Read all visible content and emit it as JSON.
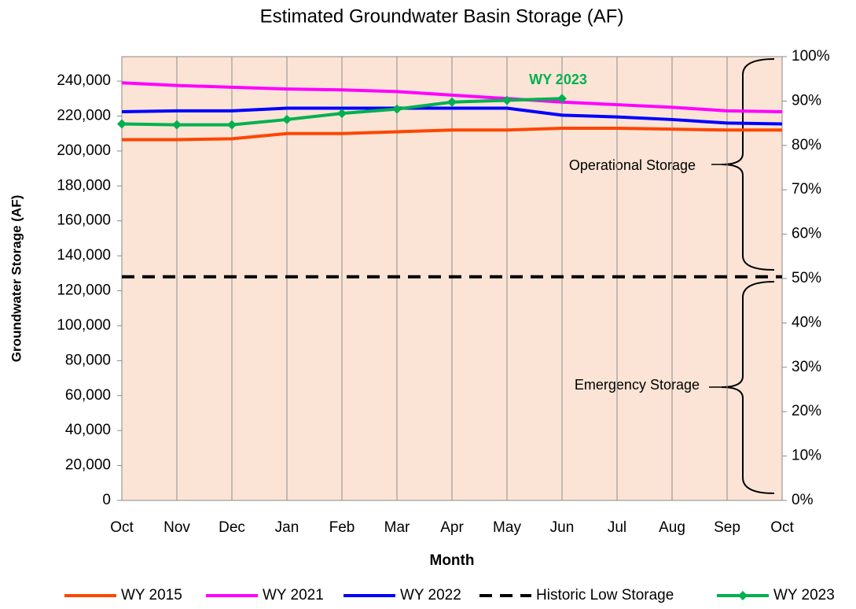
{
  "chart_data": {
    "type": "line",
    "title": "Estimated Groundwater Basin Storage (AF)",
    "x_label": "Month",
    "y_label": "Groundwater Storage (AF)",
    "categories": [
      "Oct",
      "Nov",
      "Dec",
      "Jan",
      "Feb",
      "Mar",
      "Apr",
      "May",
      "Jun",
      "Jul",
      "Aug",
      "Sep",
      "Oct"
    ],
    "series": [
      {
        "name": "WY 2015",
        "color": "#ff4500",
        "values": [
          206500,
          206500,
          207000,
          210000,
          210000,
          211000,
          212000,
          212000,
          213000,
          213000,
          212500,
          212000,
          212000
        ]
      },
      {
        "name": "WY 2021",
        "color": "#ff00ff",
        "values": [
          239000,
          237500,
          236500,
          235500,
          235000,
          234000,
          232000,
          230000,
          228000,
          226500,
          225000,
          223000,
          222500
        ]
      },
      {
        "name": "WY 2022",
        "color": "#0000ff",
        "values": [
          222500,
          223000,
          223000,
          224500,
          224500,
          224500,
          224500,
          224500,
          220500,
          219500,
          218000,
          216000,
          215500
        ]
      },
      {
        "name": "Historic Low Storage",
        "color": "#000000",
        "dashed": true,
        "values": [
          128000,
          128000,
          128000,
          128000,
          128000,
          128000,
          128000,
          128000,
          128000,
          128000,
          128000,
          128000,
          128000
        ]
      },
      {
        "name": "WY 2023",
        "color": "#00b050",
        "markers": true,
        "values": [
          215500,
          215000,
          215000,
          218000,
          221500,
          224000,
          228000,
          229000,
          230000,
          null,
          null,
          null,
          null
        ]
      }
    ],
    "ylim": [
      0,
      254000
    ],
    "yticks": [
      0,
      {
        "value": 20000,
        "label": "20,000"
      },
      {
        "value": 40000,
        "label": "40,000"
      },
      {
        "value": 60000,
        "label": "60,000"
      },
      {
        "value": 80000,
        "label": "80,000"
      },
      {
        "value": 100000,
        "label": "100,000"
      },
      {
        "value": 120000,
        "label": "120,000"
      },
      {
        "value": 140000,
        "label": "140,000"
      },
      {
        "value": 160000,
        "label": "160,000"
      },
      {
        "value": 180000,
        "label": "180,000"
      },
      {
        "value": 200000,
        "label": "200,000"
      },
      {
        "value": 220000,
        "label": "220,000"
      },
      {
        "value": 240000,
        "label": "240,000"
      }
    ],
    "y2lim": [
      0,
      100
    ],
    "y2ticks": [
      {
        "value": 0,
        "label": "0%"
      },
      {
        "value": 10,
        "label": "10%"
      },
      {
        "value": 20,
        "label": "20%"
      },
      {
        "value": 30,
        "label": "30%"
      },
      {
        "value": 40,
        "label": "40%"
      },
      {
        "value": 50,
        "label": "50%"
      },
      {
        "value": 60,
        "label": "60%"
      },
      {
        "value": 70,
        "label": "70%"
      },
      {
        "value": 80,
        "label": "80%"
      },
      {
        "value": 90,
        "label": "90%"
      },
      {
        "value": 100,
        "label": "100%"
      }
    ],
    "annotations": [
      {
        "text": "WY 2023"
      },
      {
        "text": "Operational Storage"
      },
      {
        "text": "Emergency Storage"
      }
    ],
    "vertical_grid": true,
    "legend": "bottom"
  }
}
